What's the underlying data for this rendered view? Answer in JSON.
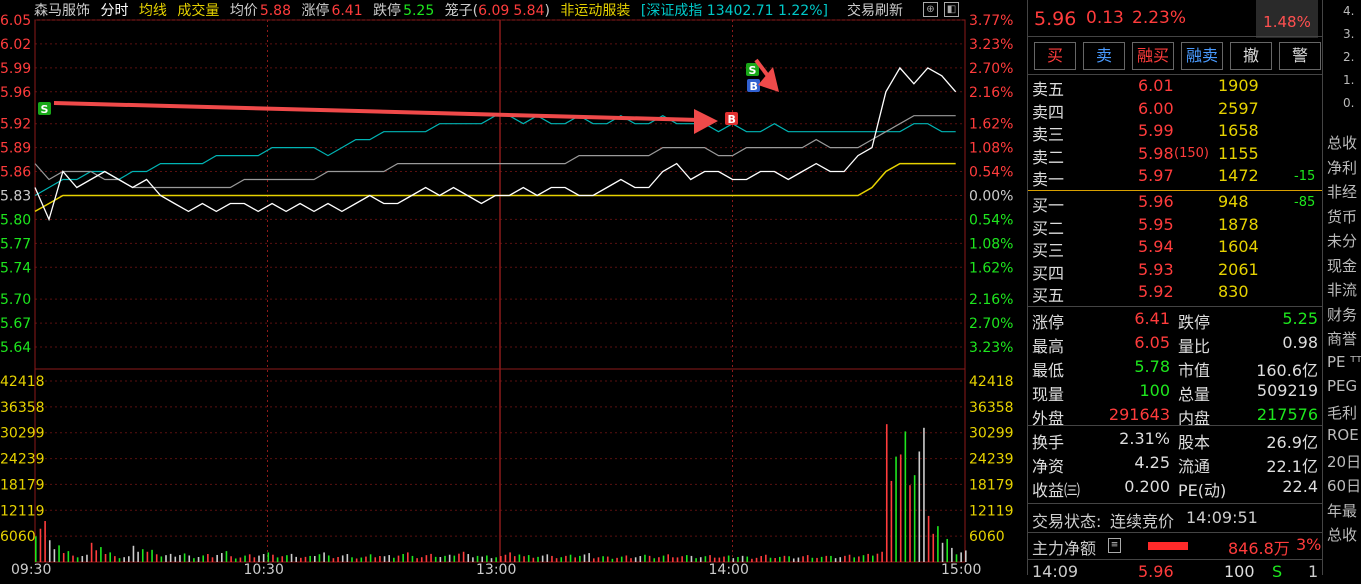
{
  "header": {
    "stock_name": "森马服饰",
    "mode_timeshare": "分时",
    "mode_avgline": "均线",
    "mode_volume": "成交量",
    "avg_label": "均价",
    "avg_value": "5.88",
    "limit_up_label": "涨停",
    "limit_up_value": "6.41",
    "limit_down_label": "跌停",
    "limit_down_value": "5.25",
    "cage_label": "笼子(",
    "cage_high": "6.09",
    "cage_low": "5.84",
    "cage_close": ")",
    "sector": "非运动服装",
    "index_text": "[深证成指 13402.71 1.22%]",
    "refresh_label": "交易刷新"
  },
  "chart_data": {
    "type": "line",
    "price_ticks": [
      "6.05",
      "6.02",
      "5.99",
      "5.96",
      "5.92",
      "5.89",
      "5.86",
      "5.83",
      "5.80",
      "5.77",
      "5.74",
      "5.70",
      "5.67",
      "5.64"
    ],
    "pct_ticks": [
      "3.77%",
      "3.23%",
      "2.70%",
      "2.16%",
      "1.62%",
      "1.08%",
      "0.54%",
      "0.00%",
      "0.54%",
      "1.08%",
      "1.62%",
      "2.16%",
      "2.70%",
      "3.23%"
    ],
    "vol_ticks": [
      "42418",
      "36358",
      "30299",
      "24239",
      "18179",
      "12119",
      "6060"
    ],
    "time_ticks": [
      "09:30",
      "10:30",
      "13:00",
      "14:00",
      "15:00"
    ],
    "price_range": [
      5.63,
      6.05
    ],
    "pre_close": 5.83,
    "volume_max": 42418,
    "price_series": [
      5.84,
      5.8,
      5.86,
      5.84,
      5.85,
      5.86,
      5.85,
      5.84,
      5.85,
      5.83,
      5.82,
      5.81,
      5.82,
      5.81,
      5.82,
      5.82,
      5.81,
      5.82,
      5.81,
      5.82,
      5.81,
      5.82,
      5.81,
      5.82,
      5.83,
      5.82,
      5.82,
      5.83,
      5.84,
      5.83,
      5.84,
      5.83,
      5.82,
      5.83,
      5.83,
      5.84,
      5.83,
      5.84,
      5.84,
      5.83,
      5.83,
      5.84,
      5.85,
      5.84,
      5.84,
      5.86,
      5.87,
      5.85,
      5.86,
      5.86,
      5.85,
      5.85,
      5.86,
      5.86,
      5.85,
      5.86,
      5.87,
      5.86,
      5.86,
      5.88,
      5.89,
      5.96,
      5.99,
      5.97,
      5.99,
      5.98,
      5.96
    ],
    "avg_series": [
      5.81,
      5.82,
      5.83,
      5.83,
      5.83,
      5.83,
      5.83,
      5.83,
      5.83,
      5.83,
      5.83,
      5.83,
      5.83,
      5.83,
      5.83,
      5.83,
      5.83,
      5.83,
      5.83,
      5.83,
      5.83,
      5.83,
      5.83,
      5.83,
      5.83,
      5.83,
      5.83,
      5.83,
      5.83,
      5.83,
      5.83,
      5.83,
      5.83,
      5.83,
      5.83,
      5.83,
      5.83,
      5.83,
      5.83,
      5.83,
      5.83,
      5.83,
      5.83,
      5.83,
      5.83,
      5.83,
      5.83,
      5.83,
      5.83,
      5.83,
      5.83,
      5.83,
      5.83,
      5.83,
      5.83,
      5.83,
      5.83,
      5.83,
      5.83,
      5.83,
      5.84,
      5.86,
      5.87,
      5.87,
      5.87,
      5.87,
      5.87
    ],
    "index_series": [
      5.83,
      5.84,
      5.85,
      5.85,
      5.86,
      5.86,
      5.85,
      5.86,
      5.86,
      5.87,
      5.87,
      5.87,
      5.87,
      5.88,
      5.88,
      5.88,
      5.88,
      5.89,
      5.89,
      5.89,
      5.89,
      5.88,
      5.89,
      5.9,
      5.9,
      5.91,
      5.91,
      5.91,
      5.91,
      5.92,
      5.92,
      5.92,
      5.92,
      5.93,
      5.93,
      5.92,
      5.93,
      5.92,
      5.92,
      5.93,
      5.92,
      5.92,
      5.93,
      5.92,
      5.92,
      5.93,
      5.92,
      5.92,
      5.92,
      5.91,
      5.92,
      5.91,
      5.91,
      5.92,
      5.91,
      5.91,
      5.91,
      5.91,
      5.91,
      5.91,
      5.91,
      5.91,
      5.91,
      5.92,
      5.92,
      5.91,
      5.91
    ],
    "gray_series": [
      5.87,
      5.85,
      5.86,
      5.86,
      5.86,
      5.85,
      5.85,
      5.84,
      5.84,
      5.84,
      5.84,
      5.84,
      5.84,
      5.84,
      5.84,
      5.85,
      5.85,
      5.85,
      5.85,
      5.85,
      5.85,
      5.86,
      5.86,
      5.86,
      5.86,
      5.86,
      5.87,
      5.87,
      5.87,
      5.87,
      5.87,
      5.87,
      5.87,
      5.87,
      5.87,
      5.87,
      5.87,
      5.87,
      5.87,
      5.88,
      5.88,
      5.88,
      5.88,
      5.88,
      5.88,
      5.89,
      5.89,
      5.89,
      5.89,
      5.88,
      5.88,
      5.89,
      5.89,
      5.89,
      5.89,
      5.89,
      5.9,
      5.89,
      5.89,
      5.89,
      5.9,
      5.91,
      5.92,
      5.93,
      5.93,
      5.93,
      5.93
    ],
    "volumes": [
      12000,
      6000,
      3000,
      2000,
      5000,
      2500,
      1500,
      4000,
      3000,
      2000,
      2500,
      1800,
      2200,
      3000,
      1500,
      2000,
      2500,
      1800,
      2000,
      1500,
      2800,
      1800,
      2200,
      1500,
      2000,
      1800,
      2500,
      1500,
      2000,
      1800,
      3000,
      2200,
      1800,
      2000,
      2500,
      1800,
      2000,
      1500,
      1800,
      2200,
      1700,
      1500,
      1800,
      2000,
      1600,
      2000,
      1800,
      1500,
      1700,
      1600,
      1800,
      1500,
      2000,
      1700,
      1500,
      1800,
      1600,
      1500,
      1800,
      2000,
      3000,
      38000,
      36000,
      37000,
      12000,
      6000,
      3000
    ],
    "markers": [
      {
        "label": "S",
        "color": "#18a818"
      },
      {
        "label": "B",
        "color": "#e03030"
      },
      {
        "label": "S",
        "color": "#18a818"
      },
      {
        "label": "B",
        "color": "#3060d0"
      }
    ]
  },
  "trade_panel": {
    "price": "5.96",
    "change": "0.13",
    "change_pct": "2.23%",
    "badge": "1.48%",
    "buttons": [
      "买",
      "卖",
      "融买",
      "融卖",
      "撤",
      "警"
    ],
    "asks": [
      {
        "label": "卖五",
        "price": "6.01",
        "vol": "1909",
        "extra": ""
      },
      {
        "label": "卖四",
        "price": "6.00",
        "vol": "2597",
        "extra": ""
      },
      {
        "label": "卖三",
        "price": "5.99",
        "vol": "1658",
        "extra": ""
      },
      {
        "label": "卖二",
        "price": "5.98",
        "vol": "1155",
        "extra": "(150)"
      },
      {
        "label": "卖一",
        "price": "5.97",
        "vol": "1472",
        "extra": "-15"
      }
    ],
    "bids": [
      {
        "label": "买一",
        "price": "5.96",
        "vol": "948",
        "extra": "-85"
      },
      {
        "label": "买二",
        "price": "5.95",
        "vol": "1878",
        "extra": ""
      },
      {
        "label": "买三",
        "price": "5.94",
        "vol": "1604",
        "extra": ""
      },
      {
        "label": "买四",
        "price": "5.93",
        "vol": "2061",
        "extra": ""
      },
      {
        "label": "买五",
        "price": "5.92",
        "vol": "830",
        "extra": ""
      }
    ],
    "stats1": [
      {
        "l1": "涨停",
        "v1": "6.41",
        "l2": "跌停",
        "v2": "5.25"
      },
      {
        "l1": "最高",
        "v1": "6.05",
        "l2": "量比",
        "v2": "0.98"
      },
      {
        "l1": "最低",
        "v1": "5.78",
        "l2": "市值",
        "v2": "160.6亿"
      },
      {
        "l1": "现量",
        "v1": "100",
        "l2": "总量",
        "v2": "509219"
      },
      {
        "l1": "外盘",
        "v1": "291643",
        "l2": "内盘",
        "v2": "217576"
      }
    ],
    "stats2": [
      {
        "l1": "换手",
        "v1": "2.31%",
        "l2": "股本",
        "v2": "26.9亿"
      },
      {
        "l1": "净资",
        "v1": "4.25",
        "l2": "流通",
        "v2": "22.1亿"
      },
      {
        "l1": "收益㈢",
        "v1": "0.200",
        "l2": "PE(动)",
        "v2": "22.4"
      }
    ],
    "status_label": "交易状态:",
    "status_value": "连续竞价",
    "status_time": "14:09:51",
    "flow_label": "主力净额",
    "flow_value": "846.8万",
    "flow_pct": "3%",
    "tick_time": "14:09",
    "tick_price": "5.96",
    "tick_vol": "100",
    "tick_side": "S",
    "tick_count": "1"
  },
  "far_right": {
    "top_numbers": [
      "4.",
      "3.",
      "2.",
      "1.",
      "0."
    ],
    "items": [
      "总收",
      "净利",
      "非经",
      "货币",
      "未分",
      "现金",
      "非流",
      "财务",
      "商誉",
      "PE ᵀᵀ",
      "PEG",
      "毛利",
      "ROE",
      "20日",
      "60日",
      "年最",
      "总收"
    ]
  },
  "colors": {
    "up": "#ff3c3c",
    "down": "#1ee61e",
    "avg": "#e6d200",
    "index": "#00b4b4",
    "price": "#ffffff",
    "grid": "#8b1a1a"
  }
}
